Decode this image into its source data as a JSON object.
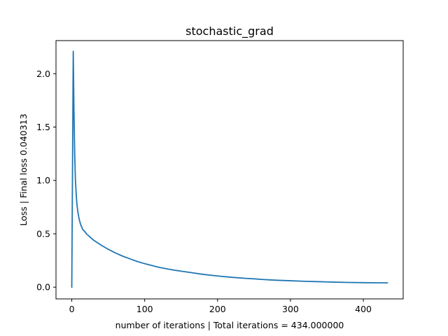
{
  "chart_data": {
    "type": "line",
    "title": "stochastic_grad",
    "xlabel": "number of iterations | Total iterations = 434.000000",
    "ylabel": "Loss | Final loss 0.040313",
    "xlim": [
      -21.65,
      454.65
    ],
    "ylim": [
      -0.11,
      2.31
    ],
    "xticks": [
      0,
      100,
      200,
      300,
      400
    ],
    "xtick_labels": [
      "0",
      "100",
      "200",
      "300",
      "400"
    ],
    "yticks": [
      0.0,
      0.5,
      1.0,
      1.5,
      2.0
    ],
    "ytick_labels": [
      "0.0",
      "0.5",
      "1.0",
      "1.5",
      "2.0"
    ],
    "grid": false,
    "legend": "none",
    "series": [
      {
        "color": "#1f77b4",
        "x": [
          0,
          2,
          3,
          4,
          5,
          6,
          7,
          8,
          10,
          12,
          15,
          18,
          20,
          25,
          30,
          40,
          50,
          60,
          70,
          80,
          90,
          100,
          120,
          140,
          150,
          160,
          180,
          200,
          220,
          240,
          250,
          260,
          280,
          300,
          320,
          340,
          350,
          360,
          380,
          400,
          420,
          433
        ],
        "y": [
          0.0,
          2.21,
          1.65,
          1.25,
          1.0,
          0.88,
          0.78,
          0.72,
          0.64,
          0.59,
          0.54,
          0.52,
          0.5,
          0.47,
          0.44,
          0.395,
          0.355,
          0.32,
          0.29,
          0.265,
          0.24,
          0.22,
          0.185,
          0.16,
          0.15,
          0.14,
          0.12,
          0.105,
          0.092,
          0.082,
          0.078,
          0.073,
          0.065,
          0.06,
          0.055,
          0.051,
          0.049,
          0.047,
          0.044,
          0.042,
          0.041,
          0.04
        ]
      }
    ]
  }
}
